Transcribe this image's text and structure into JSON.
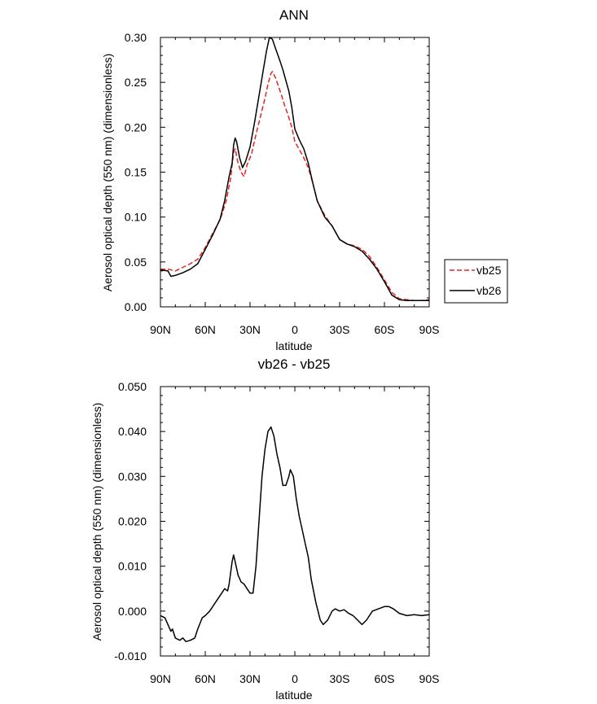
{
  "chart_data": [
    {
      "type": "line",
      "title": "ANN",
      "xlabel": "latitude",
      "ylabel": "Aerosol optical depth (550 nm) (dimensionless)",
      "xlim": [
        90,
        -90
      ],
      "ylim": [
        0,
        0.3
      ],
      "xticks": [
        90,
        60,
        30,
        0,
        -30,
        -60,
        -90
      ],
      "xtick_labels": [
        "90N",
        "60N",
        "30N",
        "0",
        "30S",
        "60S",
        "90S"
      ],
      "yticks": [
        0,
        0.05,
        0.1,
        0.15,
        0.2,
        0.25,
        0.3
      ],
      "ytick_labels": [
        "0.00",
        "0.05",
        "0.10",
        "0.15",
        "0.20",
        "0.25",
        "0.30"
      ],
      "legend_position": "right",
      "series": [
        {
          "name": "vb25",
          "color": "#e8231f",
          "dash": "dashed",
          "points": [
            [
              90,
              0.042
            ],
            [
              85,
              0.042
            ],
            [
              80,
              0.04
            ],
            [
              75,
              0.044
            ],
            [
              70,
              0.048
            ],
            [
              65,
              0.053
            ],
            [
              60,
              0.066
            ],
            [
              55,
              0.082
            ],
            [
              50,
              0.097
            ],
            [
              46,
              0.118
            ],
            [
              43,
              0.143
            ],
            [
              41,
              0.172
            ],
            [
              40,
              0.176
            ],
            [
              38,
              0.16
            ],
            [
              36,
              0.15
            ],
            [
              34,
              0.145
            ],
            [
              32,
              0.158
            ],
            [
              29,
              0.17
            ],
            [
              26,
              0.192
            ],
            [
              23,
              0.212
            ],
            [
              20,
              0.232
            ],
            [
              18,
              0.248
            ],
            [
              16,
              0.26
            ],
            [
              15,
              0.262
            ],
            [
              13,
              0.255
            ],
            [
              11,
              0.246
            ],
            [
              9,
              0.236
            ],
            [
              7,
              0.225
            ],
            [
              5,
              0.216
            ],
            [
              2,
              0.2
            ],
            [
              0,
              0.184
            ],
            [
              -3,
              0.175
            ],
            [
              -6,
              0.166
            ],
            [
              -9,
              0.155
            ],
            [
              -12,
              0.138
            ],
            [
              -15,
              0.118
            ],
            [
              -20,
              0.102
            ],
            [
              -25,
              0.09
            ],
            [
              -30,
              0.075
            ],
            [
              -35,
              0.07
            ],
            [
              -40,
              0.068
            ],
            [
              -45,
              0.064
            ],
            [
              -50,
              0.056
            ],
            [
              -55,
              0.044
            ],
            [
              -60,
              0.03
            ],
            [
              -65,
              0.016
            ],
            [
              -70,
              0.009
            ],
            [
              -75,
              0.008
            ],
            [
              -80,
              0.007
            ],
            [
              -85,
              0.007
            ],
            [
              -90,
              0.008
            ]
          ]
        },
        {
          "name": "vb26",
          "color": "#000000",
          "dash": "solid",
          "points": [
            [
              90,
              0.041
            ],
            [
              85,
              0.04
            ],
            [
              83,
              0.034
            ],
            [
              80,
              0.035
            ],
            [
              75,
              0.038
            ],
            [
              70,
              0.042
            ],
            [
              65,
              0.048
            ],
            [
              60,
              0.064
            ],
            [
              55,
              0.08
            ],
            [
              50,
              0.098
            ],
            [
              47,
              0.118
            ],
            [
              44,
              0.145
            ],
            [
              42,
              0.16
            ],
            [
              41,
              0.18
            ],
            [
              40,
              0.188
            ],
            [
              39,
              0.184
            ],
            [
              37,
              0.166
            ],
            [
              35,
              0.155
            ],
            [
              33,
              0.162
            ],
            [
              30,
              0.178
            ],
            [
              27,
              0.205
            ],
            [
              24,
              0.235
            ],
            [
              21,
              0.265
            ],
            [
              19,
              0.285
            ],
            [
              17,
              0.3
            ],
            [
              15,
              0.298
            ],
            [
              13,
              0.288
            ],
            [
              10,
              0.274
            ],
            [
              8,
              0.264
            ],
            [
              6,
              0.252
            ],
            [
              4,
              0.24
            ],
            [
              2,
              0.222
            ],
            [
              0,
              0.198
            ],
            [
              -3,
              0.186
            ],
            [
              -6,
              0.176
            ],
            [
              -9,
              0.16
            ],
            [
              -12,
              0.138
            ],
            [
              -15,
              0.118
            ],
            [
              -20,
              0.1
            ],
            [
              -25,
              0.09
            ],
            [
              -30,
              0.075
            ],
            [
              -35,
              0.07
            ],
            [
              -40,
              0.067
            ],
            [
              -45,
              0.062
            ],
            [
              -50,
              0.053
            ],
            [
              -55,
              0.042
            ],
            [
              -60,
              0.028
            ],
            [
              -65,
              0.013
            ],
            [
              -70,
              0.008
            ],
            [
              -75,
              0.007
            ],
            [
              -80,
              0.007
            ],
            [
              -85,
              0.007
            ],
            [
              -90,
              0.007
            ]
          ]
        }
      ]
    },
    {
      "type": "line",
      "title": "vb26 - vb25",
      "xlabel": "latitude",
      "ylabel": "Aerosol optical depth (550 nm) (dimensionless)",
      "xlim": [
        90,
        -90
      ],
      "ylim": [
        -0.01,
        0.05
      ],
      "xticks": [
        90,
        60,
        30,
        0,
        -30,
        -60,
        -90
      ],
      "xtick_labels": [
        "90N",
        "60N",
        "30N",
        "0",
        "30S",
        "60S",
        "90S"
      ],
      "yticks": [
        -0.01,
        0.0,
        0.01,
        0.02,
        0.03,
        0.04,
        0.05
      ],
      "ytick_labels": [
        "-0.010",
        "0.000",
        "0.010",
        "0.020",
        "0.030",
        "0.040",
        "0.050"
      ],
      "series": [
        {
          "color": "#000000",
          "dash": "solid",
          "points": [
            [
              90,
              -0.001
            ],
            [
              87,
              -0.0015
            ],
            [
              85,
              -0.003
            ],
            [
              83,
              -0.0045
            ],
            [
              82,
              -0.004
            ],
            [
              80,
              -0.006
            ],
            [
              77,
              -0.0065
            ],
            [
              75,
              -0.006
            ],
            [
              73,
              -0.0068
            ],
            [
              70,
              -0.0065
            ],
            [
              67,
              -0.006
            ],
            [
              65,
              -0.004
            ],
            [
              62,
              -0.0015
            ],
            [
              60,
              -0.001
            ],
            [
              57,
              0.0
            ],
            [
              53,
              0.002
            ],
            [
              49,
              0.004
            ],
            [
              47,
              0.005
            ],
            [
              45,
              0.0045
            ],
            [
              44,
              0.006
            ],
            [
              42,
              0.011
            ],
            [
              41,
              0.0125
            ],
            [
              40,
              0.011
            ],
            [
              38,
              0.008
            ],
            [
              36,
              0.0065
            ],
            [
              34,
              0.006
            ],
            [
              32,
              0.005
            ],
            [
              30,
              0.004
            ],
            [
              28,
              0.004
            ],
            [
              26,
              0.01
            ],
            [
              24,
              0.02
            ],
            [
              22,
              0.03
            ],
            [
              20,
              0.036
            ],
            [
              18,
              0.04
            ],
            [
              16,
              0.041
            ],
            [
              14,
              0.039
            ],
            [
              12,
              0.035
            ],
            [
              10,
              0.032
            ],
            [
              8,
              0.028
            ],
            [
              6,
              0.028
            ],
            [
              4,
              0.03
            ],
            [
              3,
              0.0315
            ],
            [
              1,
              0.03
            ],
            [
              -1,
              0.025
            ],
            [
              -3,
              0.021
            ],
            [
              -5,
              0.018
            ],
            [
              -7,
              0.015
            ],
            [
              -9,
              0.012
            ],
            [
              -11,
              0.007
            ],
            [
              -14,
              0.002
            ],
            [
              -17,
              -0.002
            ],
            [
              -19,
              -0.003
            ],
            [
              -22,
              -0.002
            ],
            [
              -25,
              0.0
            ],
            [
              -27,
              0.0005
            ],
            [
              -30,
              0.0
            ],
            [
              -33,
              0.0003
            ],
            [
              -36,
              -0.0005
            ],
            [
              -39,
              -0.001
            ],
            [
              -42,
              -0.002
            ],
            [
              -45,
              -0.003
            ],
            [
              -48,
              -0.002
            ],
            [
              -52,
              0.0
            ],
            [
              -56,
              0.0005
            ],
            [
              -60,
              0.001
            ],
            [
              -63,
              0.001
            ],
            [
              -66,
              0.0005
            ],
            [
              -70,
              -0.0005
            ],
            [
              -75,
              -0.001
            ],
            [
              -80,
              -0.0008
            ],
            [
              -85,
              -0.001
            ],
            [
              -90,
              -0.0008
            ]
          ]
        }
      ]
    }
  ]
}
